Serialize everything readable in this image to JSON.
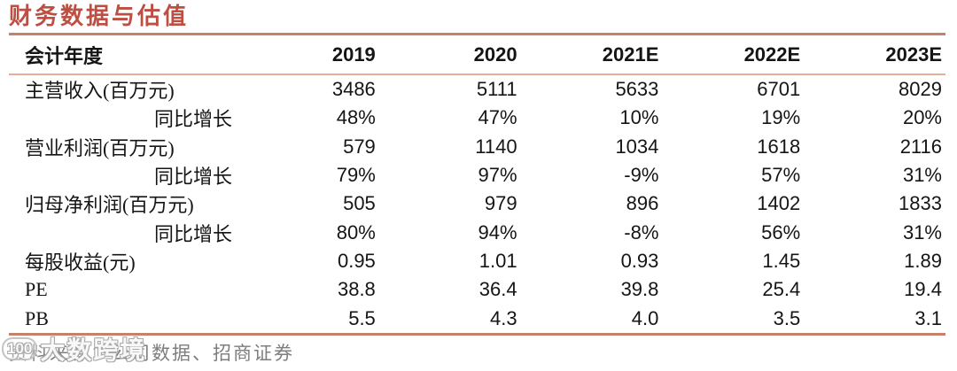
{
  "title": "财务数据与估值",
  "table": {
    "header": {
      "label": "会计年度",
      "years": [
        "2019",
        "2020",
        "2021E",
        "2022E",
        "2023E"
      ]
    },
    "rows": [
      {
        "label": "主营收入(百万元)",
        "values": [
          "3486",
          "5111",
          "5633",
          "6701",
          "8029"
        ]
      },
      {
        "label": "同比增长",
        "values": [
          "48%",
          "47%",
          "10%",
          "19%",
          "20%"
        ]
      },
      {
        "label": "营业利润(百万元)",
        "values": [
          "579",
          "1140",
          "1034",
          "1618",
          "2116"
        ]
      },
      {
        "label": "同比增长",
        "values": [
          "79%",
          "97%",
          "-9%",
          "57%",
          "31%"
        ]
      },
      {
        "label": "归母净利润(百万元)",
        "values": [
          "505",
          "979",
          "896",
          "1402",
          "1833"
        ]
      },
      {
        "label": "同比增长",
        "values": [
          "80%",
          "94%",
          "-8%",
          "56%",
          "31%"
        ]
      },
      {
        "label": "每股收益(元)",
        "values": [
          "0.95",
          "1.01",
          "0.93",
          "1.45",
          "1.89"
        ]
      },
      {
        "label": "PE",
        "values": [
          "38.8",
          "36.4",
          "39.8",
          "25.4",
          "19.4"
        ]
      },
      {
        "label": "PB",
        "values": [
          "5.5",
          "4.3",
          "4.0",
          "3.5",
          "3.1"
        ]
      }
    ]
  },
  "chart_data": {
    "type": "table",
    "title": "财务数据与估值",
    "columns": [
      "会计年度",
      "2019",
      "2020",
      "2021E",
      "2022E",
      "2023E"
    ],
    "rows": [
      [
        "主营收入(百万元)",
        "3486",
        "5111",
        "5633",
        "6701",
        "8029"
      ],
      [
        "同比增长",
        "48%",
        "47%",
        "10%",
        "19%",
        "20%"
      ],
      [
        "营业利润(百万元)",
        "579",
        "1140",
        "1034",
        "1618",
        "2116"
      ],
      [
        "同比增长",
        "79%",
        "97%",
        "-9%",
        "57%",
        "31%"
      ],
      [
        "归母净利润(百万元)",
        "505",
        "979",
        "896",
        "1402",
        "1833"
      ],
      [
        "同比增长",
        "80%",
        "94%",
        "-8%",
        "56%",
        "31%"
      ],
      [
        "每股收益(元)",
        "0.95",
        "1.01",
        "0.93",
        "1.45",
        "1.89"
      ],
      [
        "PE",
        "38.8",
        "36.4",
        "39.8",
        "25.4",
        "19.4"
      ],
      [
        "PB",
        "5.5",
        "4.3",
        "4.0",
        "3.5",
        "3.1"
      ]
    ]
  },
  "footer": {
    "source": "资料来源：公司数据、招商证券"
  },
  "watermark": {
    "logo": "100",
    "text": "大数跨境"
  },
  "colors": {
    "title_red": "#be4e41",
    "line_thick": "#c6806b",
    "line_thin": "#e6ae96",
    "footer_gray": "#7e7e7e",
    "text_black": "#151515"
  }
}
